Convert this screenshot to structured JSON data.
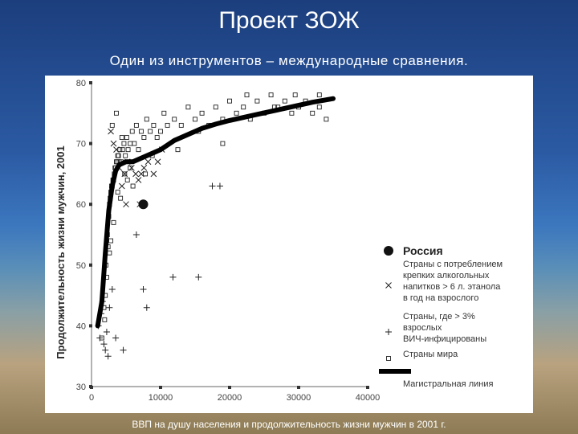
{
  "slide": {
    "title": "Проект ЗОЖ",
    "subtitle": "Один из инструментов – международные сравнения.",
    "caption": "ВВП на душу населения и продолжительность жизни мужчин в 2001 г."
  },
  "colors": {
    "background_top": "#1c3e7d",
    "marker": "#222222",
    "trend_line": "#000000"
  },
  "chart_data": {
    "type": "scatter",
    "ylabel": "Продолжительность жизни мужчин, 2001",
    "xlim": [
      0,
      40000
    ],
    "ylim": [
      30,
      80
    ],
    "x_ticks": [
      0,
      10000,
      20000,
      30000,
      40000
    ],
    "x_tick_labels": [
      "0",
      "10000",
      "20000",
      "30000",
      "40000"
    ],
    "y_ticks": [
      30,
      40,
      50,
      60,
      70,
      80
    ],
    "y_tick_labels": [
      "30",
      "40",
      "50",
      "60",
      "70",
      "80"
    ],
    "legend_position": "right",
    "legend": [
      {
        "key": "russia",
        "label": "Россия"
      },
      {
        "key": "alcohol",
        "label": "Страны с потреблением крепких алкогольных напитков > 6 л. этанола в год на взрослого"
      },
      {
        "key": "hiv",
        "label": "Страны, где > 3% взрослых ВИЧ-инфицированы"
      },
      {
        "key": "world",
        "label": "Страны мира"
      },
      {
        "key": "trend",
        "label": "Магистральная линия"
      }
    ],
    "series": [
      {
        "key": "world",
        "marker": "square",
        "points": [
          [
            1500,
            38
          ],
          [
            1900,
            41
          ],
          [
            2000,
            45
          ],
          [
            2100,
            50
          ],
          [
            2300,
            55
          ],
          [
            2500,
            58
          ],
          [
            2600,
            60
          ],
          [
            2700,
            61
          ],
          [
            2800,
            62
          ],
          [
            2900,
            63
          ],
          [
            3000,
            63
          ],
          [
            3100,
            64
          ],
          [
            3200,
            64
          ],
          [
            3300,
            65
          ],
          [
            3400,
            66
          ],
          [
            3500,
            66
          ],
          [
            3600,
            67
          ],
          [
            3700,
            67
          ],
          [
            3800,
            68
          ],
          [
            3900,
            68
          ],
          [
            4000,
            67
          ],
          [
            4100,
            69
          ],
          [
            4300,
            67
          ],
          [
            4500,
            69
          ],
          [
            4700,
            70
          ],
          [
            4900,
            68
          ],
          [
            5100,
            71
          ],
          [
            5300,
            69
          ],
          [
            5600,
            70
          ],
          [
            5900,
            72
          ],
          [
            6200,
            70
          ],
          [
            6500,
            73
          ],
          [
            6800,
            69
          ],
          [
            7200,
            72
          ],
          [
            7600,
            71
          ],
          [
            8000,
            74
          ],
          [
            8500,
            72
          ],
          [
            9000,
            73
          ],
          [
            9500,
            71
          ],
          [
            10000,
            72
          ],
          [
            10500,
            75
          ],
          [
            11000,
            73
          ],
          [
            12000,
            74
          ],
          [
            13000,
            73
          ],
          [
            14000,
            76
          ],
          [
            15000,
            74
          ],
          [
            16000,
            75
          ],
          [
            17000,
            73
          ],
          [
            18000,
            76
          ],
          [
            19000,
            74
          ],
          [
            20000,
            77
          ],
          [
            21000,
            75
          ],
          [
            22000,
            76
          ],
          [
            23000,
            74
          ],
          [
            24000,
            77
          ],
          [
            25000,
            75
          ],
          [
            26000,
            78
          ],
          [
            27000,
            76
          ],
          [
            28000,
            77
          ],
          [
            29000,
            75
          ],
          [
            30000,
            76
          ],
          [
            31000,
            77
          ],
          [
            32000,
            75
          ],
          [
            33000,
            76
          ],
          [
            34000,
            74
          ],
          [
            3200,
            57
          ],
          [
            2800,
            54
          ],
          [
            2600,
            52
          ],
          [
            4800,
            65
          ],
          [
            5200,
            64
          ],
          [
            3800,
            62
          ],
          [
            4200,
            61
          ],
          [
            1800,
            43
          ],
          [
            2200,
            48
          ],
          [
            2400,
            53
          ],
          [
            3000,
            73
          ],
          [
            3600,
            75
          ],
          [
            4400,
            71
          ],
          [
            5600,
            66
          ],
          [
            6000,
            63
          ],
          [
            19000,
            70
          ],
          [
            12500,
            69
          ],
          [
            8800,
            68
          ],
          [
            7800,
            65
          ],
          [
            15500,
            72
          ],
          [
            22500,
            78
          ],
          [
            26500,
            76
          ],
          [
            29500,
            78
          ],
          [
            33000,
            78
          ]
        ]
      },
      {
        "key": "alcohol",
        "marker": "x",
        "points": [
          [
            2800,
            72
          ],
          [
            3200,
            70
          ],
          [
            3600,
            69
          ],
          [
            4000,
            66
          ],
          [
            4400,
            63
          ],
          [
            4800,
            65
          ],
          [
            5200,
            67
          ],
          [
            5800,
            66
          ],
          [
            6400,
            65
          ],
          [
            6800,
            64
          ],
          [
            7200,
            65
          ],
          [
            7600,
            66
          ],
          [
            8200,
            67
          ],
          [
            9000,
            65
          ],
          [
            9600,
            67
          ],
          [
            10200,
            69
          ],
          [
            5000,
            60
          ],
          [
            7000,
            60
          ]
        ]
      },
      {
        "key": "hiv",
        "marker": "plus",
        "points": [
          [
            1000,
            40
          ],
          [
            1200,
            38
          ],
          [
            1400,
            42
          ],
          [
            1600,
            44
          ],
          [
            1800,
            37
          ],
          [
            2000,
            36
          ],
          [
            2200,
            39
          ],
          [
            2400,
            35
          ],
          [
            2600,
            43
          ],
          [
            3000,
            46
          ],
          [
            3500,
            38
          ],
          [
            4600,
            36
          ],
          [
            6500,
            55
          ],
          [
            7500,
            46
          ],
          [
            8000,
            43
          ],
          [
            11800,
            48
          ],
          [
            15500,
            48
          ],
          [
            17500,
            63
          ],
          [
            18600,
            63
          ]
        ]
      },
      {
        "key": "russia",
        "marker": "circle",
        "points": [
          [
            7500,
            60
          ]
        ]
      },
      {
        "key": "trend",
        "marker": "line",
        "points": [
          [
            900,
            40
          ],
          [
            1500,
            44
          ],
          [
            2000,
            52
          ],
          [
            2500,
            59
          ],
          [
            3000,
            63
          ],
          [
            3500,
            65.5
          ],
          [
            4000,
            66.5
          ],
          [
            5000,
            67
          ],
          [
            6000,
            67
          ],
          [
            7000,
            67.5
          ],
          [
            8000,
            68
          ],
          [
            10000,
            69
          ],
          [
            12000,
            70.5
          ],
          [
            14000,
            71.5
          ],
          [
            16000,
            72.5
          ],
          [
            18000,
            73.2
          ],
          [
            20000,
            73.8
          ],
          [
            24000,
            74.8
          ],
          [
            28000,
            75.8
          ],
          [
            32000,
            76.8
          ],
          [
            35000,
            77.4
          ]
        ]
      }
    ]
  }
}
